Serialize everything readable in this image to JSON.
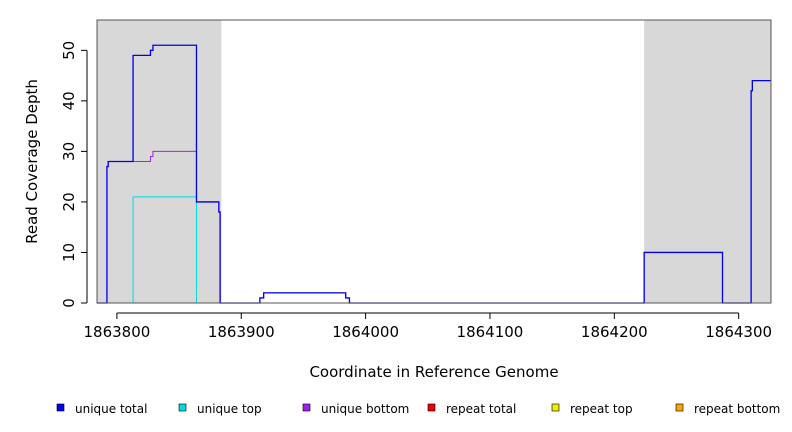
{
  "chart_data": {
    "type": "line",
    "title": "",
    "xlabel": "Coordinate in Reference Genome",
    "ylabel": "Read Coverage Depth",
    "xlim": [
      1863784,
      1864326
    ],
    "ylim": [
      0,
      56
    ],
    "x_ticks": [
      1863800,
      1863900,
      1864000,
      1864100,
      1864200,
      1864300
    ],
    "x_tick_labels": [
      "1863800",
      "1863900",
      "1864000",
      "1864100",
      "1864200",
      "1864300"
    ],
    "y_ticks": [
      0,
      10,
      20,
      30,
      40,
      50
    ],
    "y_tick_labels": [
      "0",
      "10",
      "20",
      "30",
      "40",
      "50"
    ],
    "shaded_regions": [
      {
        "x": [
          1863784,
          1863884
        ],
        "color": "#d8d8d8"
      },
      {
        "x": [
          1864224,
          1864326
        ],
        "color": "#d8d8d8"
      }
    ],
    "grid": false,
    "legend_position": "bottom",
    "series": [
      {
        "name": "unique total",
        "color": "#0000ee",
        "x": [
          1863784,
          1863792,
          1863792,
          1863793,
          1863793,
          1863813,
          1863813,
          1863827,
          1863827,
          1863829,
          1863829,
          1863864,
          1863864,
          1863882,
          1863882,
          1863883,
          1863883,
          1863915,
          1863915,
          1863918,
          1863918,
          1863984,
          1863984,
          1863987,
          1863987,
          1864224,
          1864224,
          1864287,
          1864287,
          1864310,
          1864310,
          1864311,
          1864311,
          1864326
        ],
        "y": [
          0,
          0,
          27,
          27,
          28,
          28,
          49,
          49,
          50,
          50,
          51,
          51,
          20,
          20,
          18,
          18,
          0,
          0,
          1,
          1,
          2,
          2,
          1,
          1,
          0,
          0,
          10,
          10,
          0,
          0,
          42,
          42,
          44,
          44
        ]
      },
      {
        "name": "unique top",
        "color": "#00dddd",
        "x": [
          1863813,
          1863813,
          1863864,
          1863864
        ],
        "y": [
          0,
          21,
          21,
          0
        ]
      },
      {
        "name": "unique bottom",
        "color": "#a020f0",
        "x": [
          1863792,
          1863792,
          1863793,
          1863793,
          1863827,
          1863827,
          1863829,
          1863829,
          1863864,
          1863864,
          1863882,
          1863882,
          1863883,
          1863883,
          1863915,
          1863915,
          1863918,
          1863918,
          1863984,
          1863984,
          1863987,
          1863987,
          1864224,
          1864224,
          1864287,
          1864287,
          1864310,
          1864310,
          1864311,
          1864311
        ],
        "y": [
          0,
          27,
          27,
          28,
          28,
          29,
          29,
          30,
          30,
          20,
          20,
          18,
          18,
          0,
          0,
          1,
          1,
          2,
          2,
          1,
          1,
          0,
          0,
          10,
          10,
          0,
          0,
          42,
          42,
          44
        ]
      },
      {
        "name": "repeat total",
        "color": "#ee0000",
        "x": [],
        "y": []
      },
      {
        "name": "repeat top",
        "color": "#eeee00",
        "x": [],
        "y": []
      },
      {
        "name": "repeat bottom",
        "color": "#ffa500",
        "x": [
          1863813,
          1863864
        ],
        "y": [
          0,
          0
        ]
      }
    ]
  }
}
